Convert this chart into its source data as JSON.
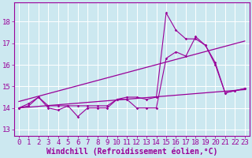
{
  "x": [
    0,
    1,
    2,
    3,
    4,
    5,
    6,
    7,
    8,
    9,
    10,
    11,
    12,
    13,
    14,
    15,
    16,
    17,
    18,
    19,
    20,
    21,
    22,
    23
  ],
  "line1": [
    14.0,
    14.2,
    14.5,
    14.0,
    13.9,
    14.1,
    13.6,
    14.0,
    14.0,
    14.0,
    14.4,
    14.4,
    14.0,
    14.0,
    14.0,
    16.3,
    16.6,
    16.4,
    17.3,
    16.9,
    16.1,
    14.7,
    14.8,
    14.9
  ],
  "line2": [
    14.0,
    14.1,
    14.5,
    14.1,
    14.1,
    14.1,
    14.1,
    14.1,
    14.1,
    14.1,
    14.4,
    14.5,
    14.5,
    14.4,
    14.5,
    18.4,
    17.6,
    17.2,
    17.2,
    16.9,
    16.0,
    14.7,
    14.8,
    14.9
  ],
  "trend1_x": [
    0,
    23
  ],
  "trend1_y": [
    14.0,
    14.85
  ],
  "trend2_x": [
    0,
    23
  ],
  "trend2_y": [
    14.3,
    17.1
  ],
  "xlabel": "Windchill (Refroidissement éolien,°C)",
  "xticks": [
    0,
    1,
    2,
    3,
    4,
    5,
    6,
    7,
    8,
    9,
    10,
    11,
    12,
    13,
    14,
    15,
    16,
    17,
    18,
    19,
    20,
    21,
    22,
    23
  ],
  "yticks": [
    13,
    14,
    15,
    16,
    17,
    18
  ],
  "ylim": [
    12.7,
    18.9
  ],
  "xlim": [
    -0.5,
    23.5
  ],
  "line_color": "#990099",
  "bg_color": "#cce8f0",
  "grid_color": "#ffffff",
  "tick_label_fontsize": 6.5,
  "xlabel_fontsize": 7
}
